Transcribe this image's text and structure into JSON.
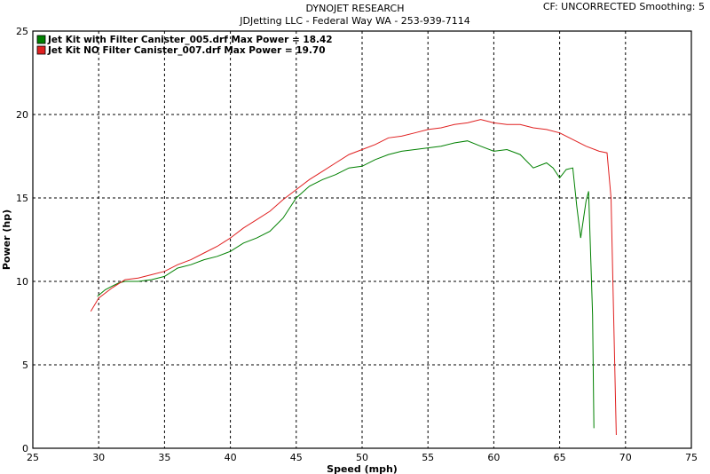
{
  "header": {
    "title": "DYNOJET RESEARCH",
    "subtitle": "JDJetting LLC  - Federal Way WA - 253-939-7114",
    "corner": "CF: UNCORRECTED  Smoothing: 5"
  },
  "chart_data": {
    "type": "line",
    "xlabel": "Speed (mph)",
    "ylabel": "Power (hp)",
    "xlim": [
      25,
      75
    ],
    "ylim": [
      0,
      25
    ],
    "xticks": [
      "25",
      "30",
      "35",
      "40",
      "45",
      "50",
      "55",
      "60",
      "65",
      "70",
      "75"
    ],
    "yticks": [
      "0",
      "5",
      "10",
      "15",
      "20",
      "25"
    ],
    "grid": true,
    "legend_position": "top-left",
    "series": [
      {
        "name": "Jet Kit with Filter Canister_005.drf Max Power = 18.42",
        "color": "#008000",
        "points": [
          [
            29.9,
            9.1
          ],
          [
            30.5,
            9.5
          ],
          [
            31.0,
            9.7
          ],
          [
            31.5,
            9.9
          ],
          [
            32.0,
            10.0
          ],
          [
            33.0,
            10.0
          ],
          [
            34.0,
            10.1
          ],
          [
            35.0,
            10.3
          ],
          [
            36.0,
            10.8
          ],
          [
            37.0,
            11.0
          ],
          [
            38.0,
            11.3
          ],
          [
            39.0,
            11.5
          ],
          [
            40.0,
            11.8
          ],
          [
            41.0,
            12.3
          ],
          [
            42.0,
            12.6
          ],
          [
            43.0,
            13.0
          ],
          [
            44.0,
            13.8
          ],
          [
            45.0,
            15.0
          ],
          [
            46.0,
            15.7
          ],
          [
            47.0,
            16.1
          ],
          [
            48.0,
            16.4
          ],
          [
            49.0,
            16.8
          ],
          [
            50.0,
            16.9
          ],
          [
            51.0,
            17.3
          ],
          [
            52.0,
            17.6
          ],
          [
            53.0,
            17.8
          ],
          [
            54.0,
            17.9
          ],
          [
            55.0,
            18.0
          ],
          [
            56.0,
            18.1
          ],
          [
            57.0,
            18.3
          ],
          [
            58.0,
            18.42
          ],
          [
            59.0,
            18.1
          ],
          [
            60.0,
            17.8
          ],
          [
            61.0,
            17.9
          ],
          [
            62.0,
            17.6
          ],
          [
            63.0,
            16.8
          ],
          [
            64.0,
            17.1
          ],
          [
            64.5,
            16.8
          ],
          [
            65.0,
            16.2
          ],
          [
            65.5,
            16.7
          ],
          [
            66.0,
            16.8
          ],
          [
            66.3,
            14.5
          ],
          [
            66.6,
            12.6
          ],
          [
            67.0,
            14.8
          ],
          [
            67.2,
            15.4
          ],
          [
            67.5,
            8.0
          ],
          [
            67.6,
            1.2
          ]
        ]
      },
      {
        "name": "Jet Kit NO Filter Canister_007.drf Max Power = 19.70",
        "color": "#e02020",
        "points": [
          [
            29.4,
            8.2
          ],
          [
            30.0,
            9.0
          ],
          [
            31.0,
            9.6
          ],
          [
            32.0,
            10.1
          ],
          [
            33.0,
            10.2
          ],
          [
            34.0,
            10.4
          ],
          [
            35.0,
            10.6
          ],
          [
            36.0,
            11.0
          ],
          [
            37.0,
            11.3
          ],
          [
            38.0,
            11.7
          ],
          [
            39.0,
            12.1
          ],
          [
            40.0,
            12.6
          ],
          [
            41.0,
            13.2
          ],
          [
            42.0,
            13.7
          ],
          [
            43.0,
            14.2
          ],
          [
            44.0,
            14.9
          ],
          [
            45.0,
            15.5
          ],
          [
            46.0,
            16.1
          ],
          [
            47.0,
            16.6
          ],
          [
            48.0,
            17.1
          ],
          [
            49.0,
            17.6
          ],
          [
            50.0,
            17.9
          ],
          [
            51.0,
            18.2
          ],
          [
            52.0,
            18.6
          ],
          [
            53.0,
            18.7
          ],
          [
            54.0,
            18.9
          ],
          [
            55.0,
            19.1
          ],
          [
            56.0,
            19.2
          ],
          [
            57.0,
            19.4
          ],
          [
            58.0,
            19.5
          ],
          [
            59.0,
            19.7
          ],
          [
            60.0,
            19.5
          ],
          [
            61.0,
            19.4
          ],
          [
            62.0,
            19.4
          ],
          [
            63.0,
            19.2
          ],
          [
            64.0,
            19.1
          ],
          [
            65.0,
            18.9
          ],
          [
            66.0,
            18.5
          ],
          [
            67.0,
            18.1
          ],
          [
            68.0,
            17.8
          ],
          [
            68.6,
            17.7
          ],
          [
            68.9,
            15.0
          ],
          [
            69.1,
            8.0
          ],
          [
            69.3,
            0.8
          ]
        ]
      }
    ]
  }
}
